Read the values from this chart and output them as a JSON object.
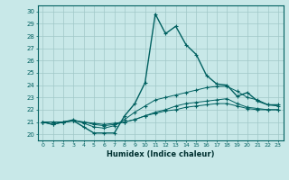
{
  "xlabel": "Humidex (Indice chaleur)",
  "ylabel": "",
  "xlim": [
    -0.5,
    23.5
  ],
  "ylim": [
    19.5,
    30.5
  ],
  "yticks": [
    20,
    21,
    22,
    23,
    24,
    25,
    26,
    27,
    28,
    29,
    30
  ],
  "xticks": [
    0,
    1,
    2,
    3,
    4,
    5,
    6,
    7,
    8,
    9,
    10,
    11,
    12,
    13,
    14,
    15,
    16,
    17,
    18,
    19,
    20,
    21,
    22,
    23
  ],
  "bg_color": "#c8e8e8",
  "grid_color": "#a0c8c8",
  "line_color": "#006060",
  "series": [
    [
      21.0,
      20.8,
      21.0,
      21.1,
      20.6,
      20.1,
      20.1,
      20.1,
      21.5,
      22.5,
      24.2,
      29.8,
      28.2,
      28.8,
      27.3,
      26.5,
      24.8,
      24.1,
      24.0,
      23.1,
      23.4,
      22.7,
      22.4,
      22.4
    ],
    [
      21.0,
      20.8,
      21.0,
      21.2,
      20.9,
      20.6,
      20.5,
      20.7,
      21.2,
      21.8,
      22.3,
      22.8,
      23.0,
      23.2,
      23.4,
      23.6,
      23.8,
      23.9,
      23.9,
      23.5,
      23.0,
      22.8,
      22.4,
      22.3
    ],
    [
      21.0,
      21.0,
      21.0,
      21.1,
      21.0,
      20.8,
      20.7,
      20.8,
      21.0,
      21.2,
      21.5,
      21.8,
      22.0,
      22.3,
      22.5,
      22.6,
      22.7,
      22.8,
      22.9,
      22.5,
      22.2,
      22.1,
      22.0,
      22.0
    ],
    [
      21.0,
      21.0,
      21.0,
      21.1,
      21.0,
      20.9,
      20.8,
      20.9,
      21.0,
      21.2,
      21.5,
      21.7,
      21.9,
      22.0,
      22.2,
      22.3,
      22.4,
      22.5,
      22.5,
      22.3,
      22.1,
      22.0,
      22.0,
      22.0
    ]
  ]
}
